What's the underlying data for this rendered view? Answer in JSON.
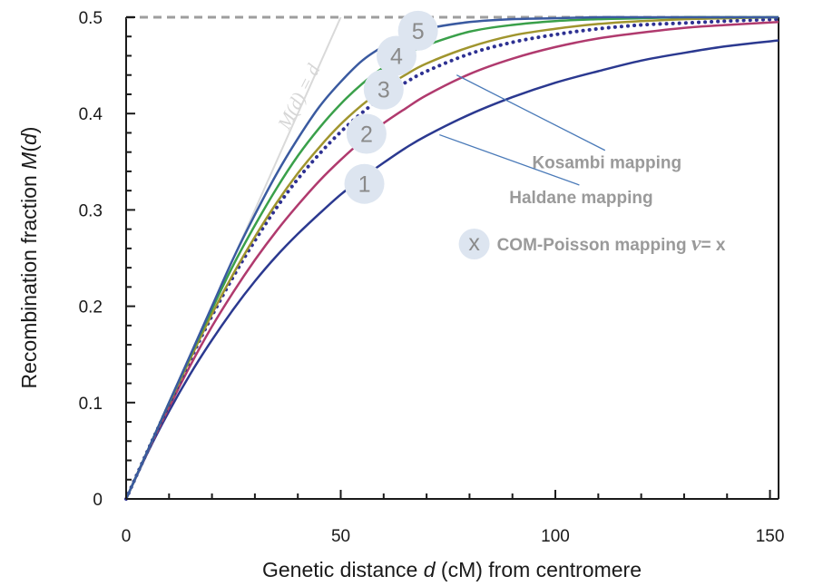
{
  "chart_data": {
    "type": "line",
    "xlabel_parts": [
      "Genetic distance ",
      "d",
      " (cM)  from centromere"
    ],
    "ylabel_parts": [
      "Recombination fraction ",
      "M",
      "(",
      "d",
      ")"
    ],
    "xlim": [
      0,
      152
    ],
    "ylim": [
      0,
      0.5
    ],
    "x_ticks": [
      0,
      50,
      100,
      150
    ],
    "x_tick_labels": [
      "0",
      "50",
      "100",
      "150"
    ],
    "y_ticks": [
      0,
      0.1,
      0.2,
      0.3,
      0.4,
      0.5
    ],
    "y_tick_labels": [
      "0",
      "0.1",
      "0.2",
      "0.3",
      "0.4",
      "0.5"
    ],
    "x": [
      0,
      5,
      10,
      15,
      20,
      25,
      30,
      35,
      40,
      45,
      50,
      55,
      60,
      65,
      70,
      80,
      90,
      100,
      110,
      120,
      130,
      140,
      152
    ],
    "series": [
      {
        "name": "1",
        "color": "#2b3990",
        "style": "solid",
        "values": [
          0,
          0.048,
          0.091,
          0.13,
          0.165,
          0.197,
          0.226,
          0.252,
          0.275,
          0.296,
          0.316,
          0.333,
          0.349,
          0.364,
          0.377,
          0.399,
          0.417,
          0.432,
          0.444,
          0.455,
          0.463,
          0.47,
          0.476
        ]
      },
      {
        "name": "2",
        "color": "#b03a6e",
        "style": "solid",
        "values": [
          0,
          0.049,
          0.095,
          0.139,
          0.179,
          0.215,
          0.248,
          0.278,
          0.305,
          0.33,
          0.352,
          0.372,
          0.39,
          0.405,
          0.419,
          0.441,
          0.457,
          0.469,
          0.478,
          0.484,
          0.489,
          0.492,
          0.495
        ]
      },
      {
        "name": "Kosambi mapping",
        "color": "#2e3192",
        "style": "dotted",
        "values": [
          0,
          0.05,
          0.098,
          0.145,
          0.19,
          0.231,
          0.268,
          0.302,
          0.332,
          0.358,
          0.381,
          0.401,
          0.418,
          0.432,
          0.444,
          0.462,
          0.474,
          0.482,
          0.488,
          0.492,
          0.494,
          0.496,
          0.498
        ]
      },
      {
        "name": "3",
        "color": "#a0952e",
        "style": "solid",
        "values": [
          0,
          0.05,
          0.099,
          0.146,
          0.192,
          0.234,
          0.272,
          0.307,
          0.338,
          0.365,
          0.389,
          0.409,
          0.426,
          0.44,
          0.452,
          0.469,
          0.481,
          0.488,
          0.493,
          0.496,
          0.498,
          0.499,
          0.5
        ]
      },
      {
        "name": "4",
        "color": "#3aa04a",
        "style": "solid",
        "values": [
          0,
          0.05,
          0.1,
          0.149,
          0.197,
          0.243,
          0.284,
          0.322,
          0.356,
          0.385,
          0.41,
          0.431,
          0.448,
          0.461,
          0.471,
          0.485,
          0.492,
          0.496,
          0.498,
          0.499,
          0.5,
          0.5,
          0.5
        ]
      },
      {
        "name": "5",
        "color": "#3a5aa0",
        "style": "solid",
        "values": [
          0,
          0.05,
          0.1,
          0.15,
          0.2,
          0.25,
          0.295,
          0.337,
          0.374,
          0.407,
          0.433,
          0.455,
          0.47,
          0.481,
          0.488,
          0.495,
          0.498,
          0.499,
          0.5,
          0.5,
          0.5,
          0.5,
          0.5
        ]
      }
    ],
    "reference_lines": [
      {
        "label_parts": [
          "M",
          "(",
          "d",
          ") = ",
          "d"
        ],
        "color": "#d9d9d9",
        "x": [
          0,
          50
        ],
        "y": [
          0,
          0.5
        ]
      },
      {
        "label": "",
        "color": "#9e9e9e",
        "style": "dashed",
        "x": [
          0,
          152
        ],
        "y": [
          0.5,
          0.5
        ]
      }
    ],
    "badges": [
      {
        "text": "1",
        "x": 55.5,
        "y": 0.327
      },
      {
        "text": "2",
        "x": 56,
        "y": 0.379
      },
      {
        "text": "3",
        "x": 60,
        "y": 0.425
      },
      {
        "text": "4",
        "x": 63,
        "y": 0.46
      },
      {
        "text": "5",
        "x": 68,
        "y": 0.486
      }
    ],
    "annotations": [
      {
        "text": "Kosambi mapping",
        "x": 112,
        "y": 0.343,
        "pointer_to": [
          77,
          0.44
        ]
      },
      {
        "text": "Haldane mapping",
        "x": 106,
        "y": 0.307,
        "pointer_to": [
          73,
          0.378
        ]
      }
    ],
    "legend_note": {
      "badge": "x",
      "text": "COM-Poisson mapping ",
      "nu": "ν",
      "eq": "= x",
      "x": 98,
      "y": 0.258
    },
    "grid": false,
    "legend_placement": "none"
  }
}
